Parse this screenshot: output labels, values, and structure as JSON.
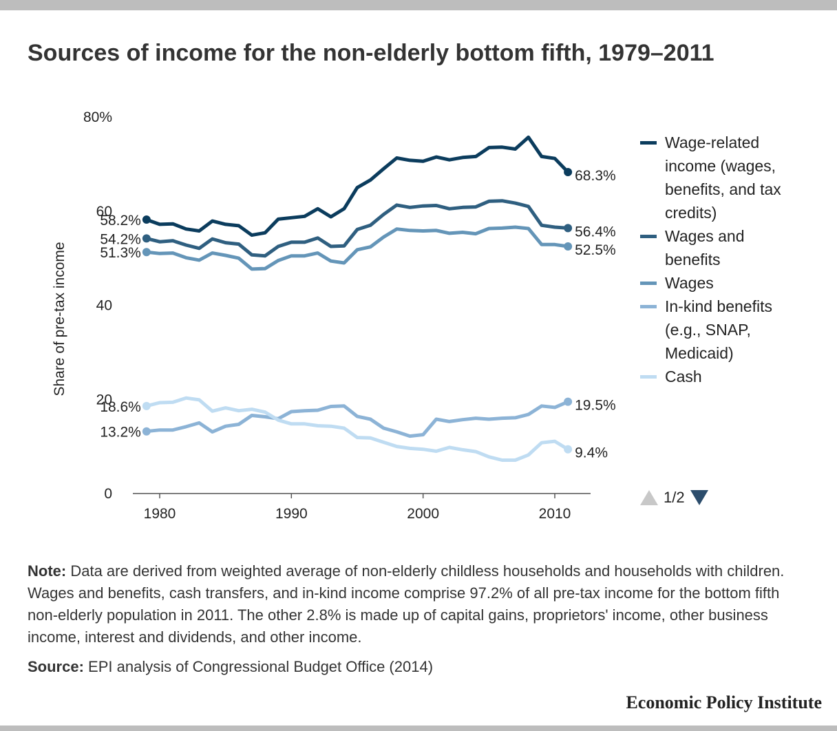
{
  "title": "Sources of income for the non-elderly bottom fifth, 1979–2011",
  "note": {
    "label": "Note:",
    "text": "Data are derived from weighted average of non-elderly childless households and households with children. Wages and benefits, cash transfers, and in-kind income comprise 97.2% of all pre-tax income for the bottom fifth non-elderly population in 2011. The other 2.8% is made up of capital gains, proprietors' income, other business income, interest and dividends, and other income."
  },
  "source": {
    "label": "Source:",
    "text": "EPI analysis of Congressional Budget Office (2014)"
  },
  "brand": "Economic Policy Institute",
  "pager": {
    "text": "1/2",
    "up_icon": "triangle-up-icon",
    "down_icon": "triangle-down-icon"
  },
  "chart_data": {
    "type": "line",
    "title": "Sources of income for the non-elderly bottom fifth, 1979–2011",
    "ylabel": "Share of pre-tax income",
    "xlabel": "",
    "ylim": [
      0,
      80
    ],
    "xlim": [
      1978,
      2013
    ],
    "y_ticks": [
      0,
      20,
      40,
      60,
      80
    ],
    "y_tick_labels": [
      "0",
      "20",
      "40",
      "60",
      "80%"
    ],
    "x_ticks": [
      1980,
      1990,
      2000,
      2010
    ],
    "x_tick_labels": [
      "1980",
      "1990",
      "2000",
      "2010"
    ],
    "grid": false,
    "legend_position": "right",
    "x": [
      1979,
      1980,
      1981,
      1982,
      1983,
      1984,
      1985,
      1986,
      1987,
      1988,
      1989,
      1990,
      1991,
      1992,
      1993,
      1994,
      1995,
      1996,
      1997,
      1998,
      1999,
      2000,
      2001,
      2002,
      2003,
      2004,
      2005,
      2006,
      2007,
      2008,
      2009,
      2010,
      2011
    ],
    "series": [
      {
        "name": "Wage-related income (wages, benefits, and tax credits)",
        "color": "#0b3c5d",
        "start_label": "58.2%",
        "end_label": "68.3%",
        "values": [
          58.2,
          57.2,
          57.3,
          56.2,
          55.8,
          57.9,
          57.2,
          56.9,
          54.9,
          55.4,
          58.3,
          58.6,
          58.9,
          60.5,
          58.8,
          60.5,
          65.0,
          66.6,
          69.0,
          71.3,
          70.8,
          70.6,
          71.5,
          70.9,
          71.4,
          71.6,
          73.5,
          73.6,
          73.2,
          75.7,
          71.6,
          71.2,
          68.3
        ]
      },
      {
        "name": "Wages and benefits",
        "color": "#2f5f80",
        "start_label": "54.2%",
        "end_label": "56.4%",
        "values": [
          54.2,
          53.5,
          53.7,
          52.8,
          52.1,
          54.1,
          53.3,
          53.0,
          50.7,
          50.5,
          52.5,
          53.4,
          53.4,
          54.3,
          52.5,
          52.6,
          56.1,
          57.0,
          59.3,
          61.3,
          60.8,
          61.1,
          61.2,
          60.5,
          60.8,
          60.9,
          62.1,
          62.2,
          61.7,
          61.0,
          57.0,
          56.6,
          56.4
        ]
      },
      {
        "name": "Wages",
        "color": "#6495b8",
        "start_label": "51.3%",
        "end_label": "52.5%",
        "values": [
          51.3,
          51.0,
          51.1,
          50.1,
          49.6,
          51.1,
          50.6,
          50.0,
          47.7,
          47.8,
          49.5,
          50.5,
          50.5,
          51.1,
          49.4,
          49.0,
          51.8,
          52.4,
          54.5,
          56.2,
          55.9,
          55.8,
          55.9,
          55.3,
          55.5,
          55.2,
          56.3,
          56.4,
          56.6,
          56.3,
          52.9,
          52.9,
          52.5
        ]
      },
      {
        "name": "In-kind benefits (e.g., SNAP, Medicaid)",
        "color": "#8cb3d6",
        "start_label": "13.2%",
        "end_label": "19.5%",
        "values": [
          13.2,
          13.5,
          13.5,
          14.2,
          15.0,
          13.1,
          14.3,
          14.7,
          16.6,
          16.3,
          15.9,
          17.4,
          17.6,
          17.7,
          18.5,
          18.6,
          16.4,
          15.8,
          13.9,
          13.1,
          12.2,
          12.5,
          15.8,
          15.3,
          15.7,
          16.0,
          15.8,
          16.0,
          16.1,
          16.8,
          18.6,
          18.3,
          19.5
        ]
      },
      {
        "name": "Cash",
        "color": "#bfdcf2",
        "start_label": "18.6%",
        "end_label": "9.4%",
        "values": [
          18.6,
          19.3,
          19.4,
          20.3,
          19.9,
          17.5,
          18.2,
          17.6,
          17.9,
          17.3,
          15.6,
          14.8,
          14.8,
          14.4,
          14.3,
          13.9,
          11.9,
          11.8,
          10.9,
          10.0,
          9.6,
          9.4,
          9.0,
          9.8,
          9.3,
          8.9,
          7.8,
          7.1,
          7.1,
          8.2,
          10.8,
          11.1,
          9.4
        ]
      }
    ]
  }
}
